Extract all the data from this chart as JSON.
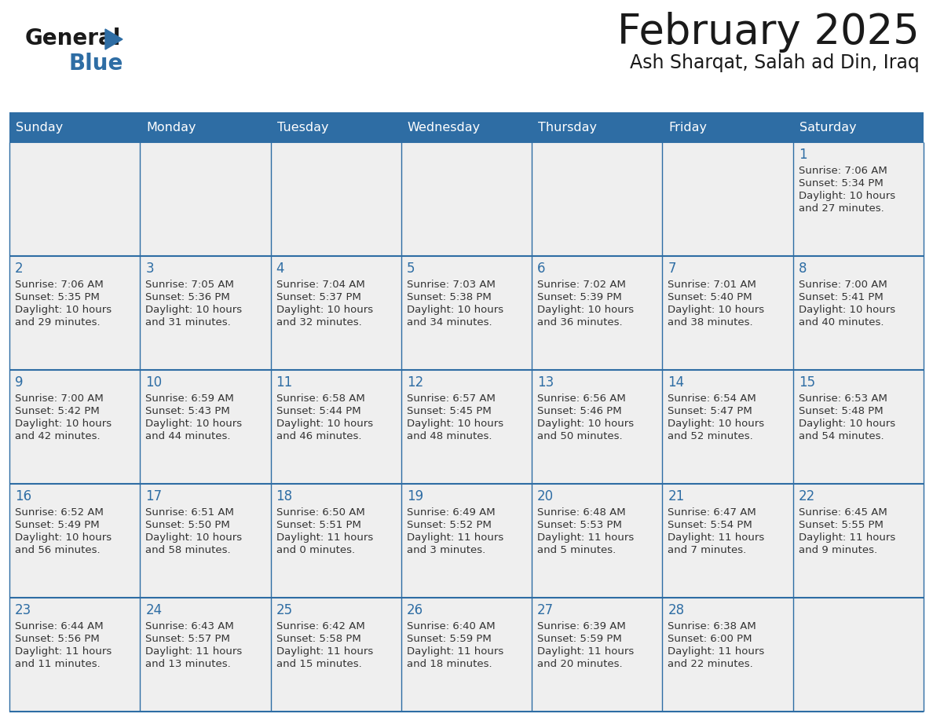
{
  "title": "February 2025",
  "subtitle": "Ash Sharqat, Salah ad Din, Iraq",
  "days_of_week": [
    "Sunday",
    "Monday",
    "Tuesday",
    "Wednesday",
    "Thursday",
    "Friday",
    "Saturday"
  ],
  "header_bg": "#2E6DA4",
  "header_text": "#FFFFFF",
  "cell_bg_light": "#EFEFEF",
  "border_color": "#2E6DA4",
  "day_num_color": "#2E6DA4",
  "text_color": "#333333",
  "logo_general_color": "#1a1a1a",
  "logo_blue_color": "#2E6DA4",
  "calendar_data": [
    [
      null,
      null,
      null,
      null,
      null,
      null,
      {
        "day": 1,
        "sunrise": "7:06 AM",
        "sunset": "5:34 PM",
        "daylight": "10 hours",
        "daylight2": "and 27 minutes."
      }
    ],
    [
      {
        "day": 2,
        "sunrise": "7:06 AM",
        "sunset": "5:35 PM",
        "daylight": "10 hours",
        "daylight2": "and 29 minutes."
      },
      {
        "day": 3,
        "sunrise": "7:05 AM",
        "sunset": "5:36 PM",
        "daylight": "10 hours",
        "daylight2": "and 31 minutes."
      },
      {
        "day": 4,
        "sunrise": "7:04 AM",
        "sunset": "5:37 PM",
        "daylight": "10 hours",
        "daylight2": "and 32 minutes."
      },
      {
        "day": 5,
        "sunrise": "7:03 AM",
        "sunset": "5:38 PM",
        "daylight": "10 hours",
        "daylight2": "and 34 minutes."
      },
      {
        "day": 6,
        "sunrise": "7:02 AM",
        "sunset": "5:39 PM",
        "daylight": "10 hours",
        "daylight2": "and 36 minutes."
      },
      {
        "day": 7,
        "sunrise": "7:01 AM",
        "sunset": "5:40 PM",
        "daylight": "10 hours",
        "daylight2": "and 38 minutes."
      },
      {
        "day": 8,
        "sunrise": "7:00 AM",
        "sunset": "5:41 PM",
        "daylight": "10 hours",
        "daylight2": "and 40 minutes."
      }
    ],
    [
      {
        "day": 9,
        "sunrise": "7:00 AM",
        "sunset": "5:42 PM",
        "daylight": "10 hours",
        "daylight2": "and 42 minutes."
      },
      {
        "day": 10,
        "sunrise": "6:59 AM",
        "sunset": "5:43 PM",
        "daylight": "10 hours",
        "daylight2": "and 44 minutes."
      },
      {
        "day": 11,
        "sunrise": "6:58 AM",
        "sunset": "5:44 PM",
        "daylight": "10 hours",
        "daylight2": "and 46 minutes."
      },
      {
        "day": 12,
        "sunrise": "6:57 AM",
        "sunset": "5:45 PM",
        "daylight": "10 hours",
        "daylight2": "and 48 minutes."
      },
      {
        "day": 13,
        "sunrise": "6:56 AM",
        "sunset": "5:46 PM",
        "daylight": "10 hours",
        "daylight2": "and 50 minutes."
      },
      {
        "day": 14,
        "sunrise": "6:54 AM",
        "sunset": "5:47 PM",
        "daylight": "10 hours",
        "daylight2": "and 52 minutes."
      },
      {
        "day": 15,
        "sunrise": "6:53 AM",
        "sunset": "5:48 PM",
        "daylight": "10 hours",
        "daylight2": "and 54 minutes."
      }
    ],
    [
      {
        "day": 16,
        "sunrise": "6:52 AM",
        "sunset": "5:49 PM",
        "daylight": "10 hours",
        "daylight2": "and 56 minutes."
      },
      {
        "day": 17,
        "sunrise": "6:51 AM",
        "sunset": "5:50 PM",
        "daylight": "10 hours",
        "daylight2": "and 58 minutes."
      },
      {
        "day": 18,
        "sunrise": "6:50 AM",
        "sunset": "5:51 PM",
        "daylight": "11 hours",
        "daylight2": "and 0 minutes."
      },
      {
        "day": 19,
        "sunrise": "6:49 AM",
        "sunset": "5:52 PM",
        "daylight": "11 hours",
        "daylight2": "and 3 minutes."
      },
      {
        "day": 20,
        "sunrise": "6:48 AM",
        "sunset": "5:53 PM",
        "daylight": "11 hours",
        "daylight2": "and 5 minutes."
      },
      {
        "day": 21,
        "sunrise": "6:47 AM",
        "sunset": "5:54 PM",
        "daylight": "11 hours",
        "daylight2": "and 7 minutes."
      },
      {
        "day": 22,
        "sunrise": "6:45 AM",
        "sunset": "5:55 PM",
        "daylight": "11 hours",
        "daylight2": "and 9 minutes."
      }
    ],
    [
      {
        "day": 23,
        "sunrise": "6:44 AM",
        "sunset": "5:56 PM",
        "daylight": "11 hours",
        "daylight2": "and 11 minutes."
      },
      {
        "day": 24,
        "sunrise": "6:43 AM",
        "sunset": "5:57 PM",
        "daylight": "11 hours",
        "daylight2": "and 13 minutes."
      },
      {
        "day": 25,
        "sunrise": "6:42 AM",
        "sunset": "5:58 PM",
        "daylight": "11 hours",
        "daylight2": "and 15 minutes."
      },
      {
        "day": 26,
        "sunrise": "6:40 AM",
        "sunset": "5:59 PM",
        "daylight": "11 hours",
        "daylight2": "and 18 minutes."
      },
      {
        "day": 27,
        "sunrise": "6:39 AM",
        "sunset": "5:59 PM",
        "daylight": "11 hours",
        "daylight2": "and 20 minutes."
      },
      {
        "day": 28,
        "sunrise": "6:38 AM",
        "sunset": "6:00 PM",
        "daylight": "11 hours",
        "daylight2": "and 22 minutes."
      },
      null
    ]
  ]
}
